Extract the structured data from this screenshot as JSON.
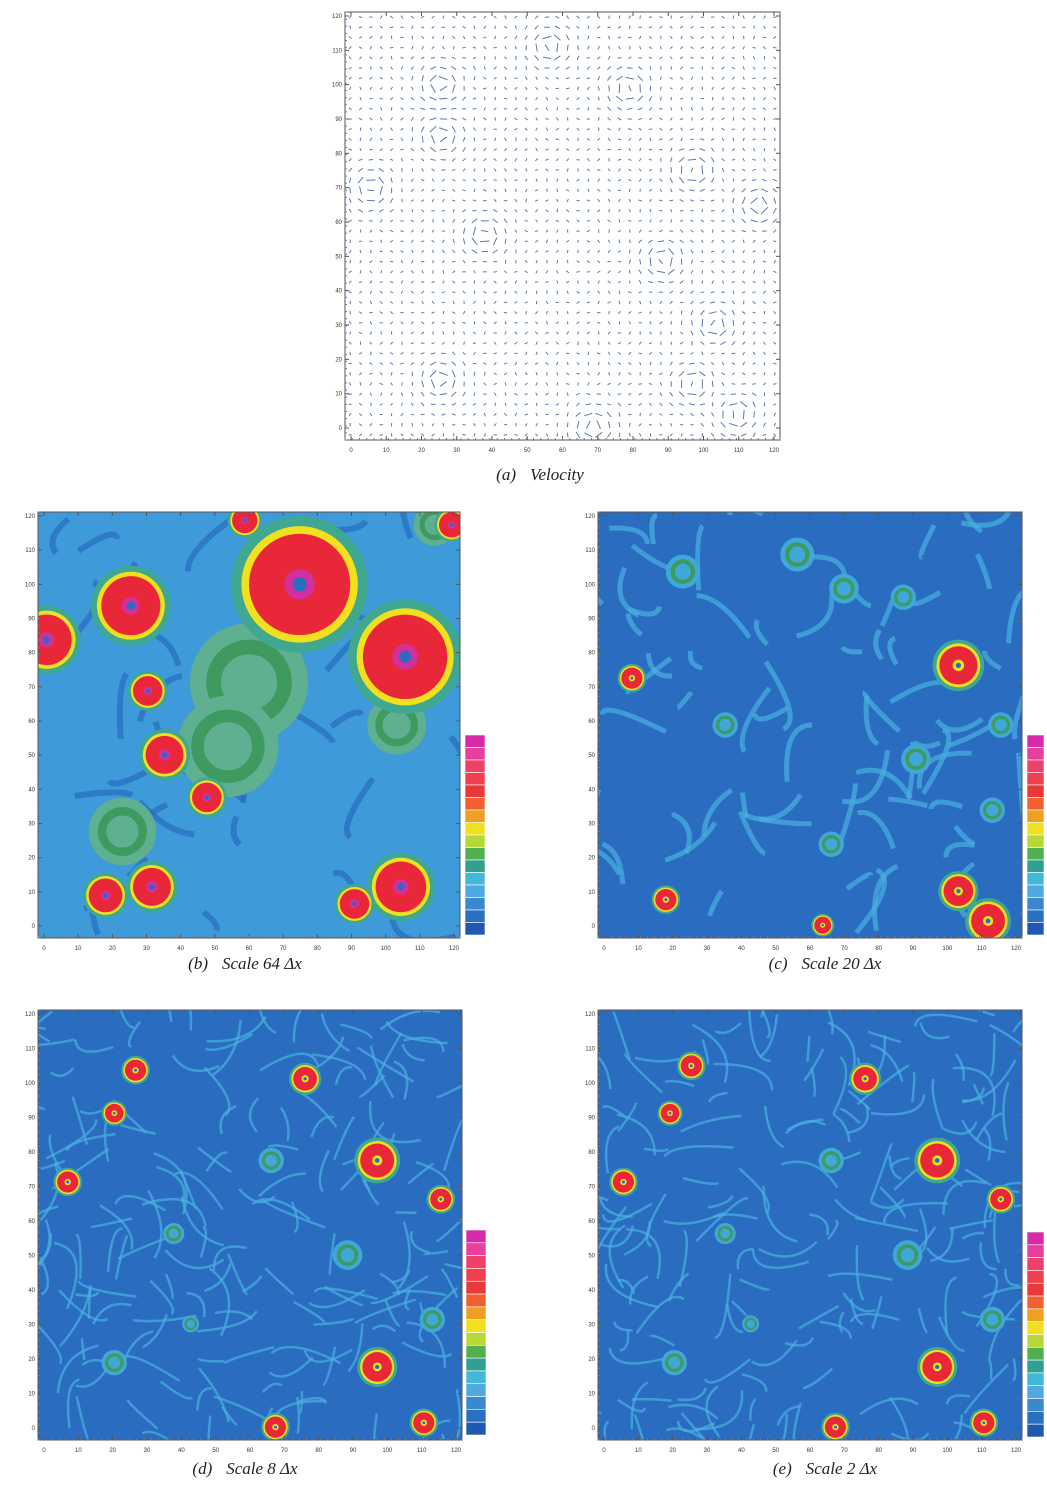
{
  "panels": [
    {
      "label": "(a)",
      "caption": "Velocity",
      "xticks": [
        0,
        10,
        20,
        30,
        40,
        50,
        60,
        70,
        80,
        90,
        100,
        110,
        120
      ],
      "yticks": [
        0,
        10,
        20,
        30,
        40,
        50,
        60,
        70,
        80,
        90,
        100,
        110,
        120
      ]
    },
    {
      "label": "(b)",
      "caption": "Scale 64 Δx",
      "xticks": [
        0,
        10,
        20,
        30,
        40,
        50,
        60,
        70,
        80,
        90,
        100,
        110,
        120
      ],
      "yticks": [
        0,
        10,
        20,
        30,
        40,
        50,
        60,
        70,
        80,
        90,
        100,
        110,
        120
      ]
    },
    {
      "label": "(c)",
      "caption": "Scale 20 Δx",
      "xticks": [
        0,
        10,
        20,
        30,
        40,
        50,
        60,
        70,
        80,
        90,
        100,
        110,
        120
      ],
      "yticks": [
        0,
        10,
        20,
        30,
        40,
        50,
        60,
        70,
        80,
        90,
        100,
        110,
        120
      ]
    },
    {
      "label": "(d)",
      "caption": "Scale 8 Δx",
      "xticks": [
        0,
        10,
        20,
        30,
        40,
        50,
        60,
        70,
        80,
        90,
        100,
        110,
        120
      ],
      "yticks": [
        0,
        10,
        20,
        30,
        40,
        50,
        60,
        70,
        80,
        90,
        100,
        110,
        120
      ]
    },
    {
      "label": "(e)",
      "caption": "Scale 2 Δx",
      "xticks": [
        0,
        10,
        20,
        30,
        40,
        50,
        60,
        70,
        80,
        90,
        100,
        110,
        120
      ],
      "yticks": [
        0,
        10,
        20,
        30,
        40,
        50,
        60,
        70,
        80,
        90,
        100,
        110,
        120
      ]
    }
  ]
}
